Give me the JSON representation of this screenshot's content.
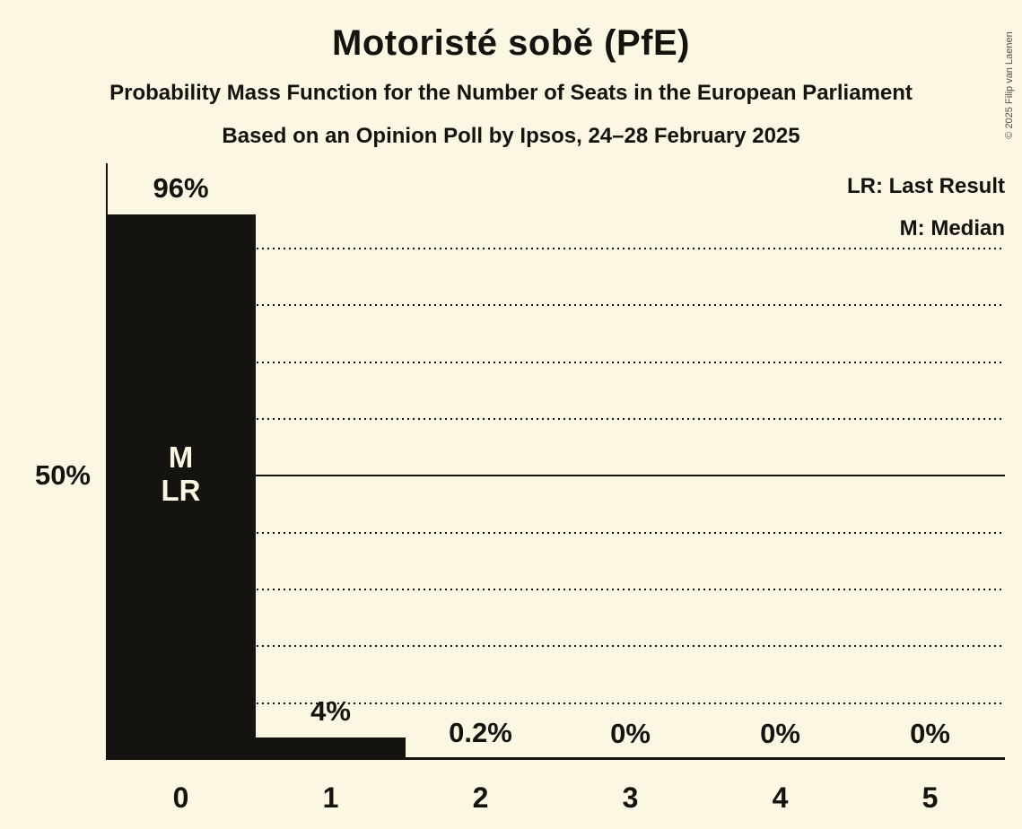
{
  "title": "Motoristé sobě (PfE)",
  "subtitle_line1": "Probability Mass Function for the Number of Seats in the European Parliament",
  "subtitle_line2": "Based on an Opinion Poll by Ipsos, 24–28 February 2025",
  "copyright": "© 2025 Filip van Laenen",
  "legend": {
    "last_result": "LR: Last Result",
    "median": "M: Median"
  },
  "y_axis": {
    "label_50": "50%"
  },
  "colors": {
    "background": "#FBF7E3",
    "bar": "#14130F",
    "text": "#14130F",
    "bar_annotation_text": "#FBF7E3",
    "copyright_text": "#55524A"
  },
  "chart_data": {
    "type": "bar",
    "title": "Motoristé sobě (PfE)",
    "categories": [
      "0",
      "1",
      "2",
      "3",
      "4",
      "5"
    ],
    "values": [
      96,
      4,
      0.2,
      0,
      0,
      0
    ],
    "value_labels": [
      "96%",
      "4%",
      "0.2%",
      "0%",
      "0%",
      "0%"
    ],
    "bar_annotations": [
      [
        "M",
        "LR"
      ],
      [],
      [],
      [],
      [],
      []
    ],
    "xlabel": "",
    "ylabel": "",
    "ylim": [
      0,
      105
    ],
    "grid_dotted_percents": [
      10,
      20,
      30,
      40,
      60,
      70,
      80,
      90
    ],
    "grid_solid_percent": 50,
    "grid_style": "dotted horizontal lines, solid line at 50%",
    "legend_position": "top-right",
    "legend_entries": [
      "LR: Last Result",
      "M: Median"
    ]
  }
}
